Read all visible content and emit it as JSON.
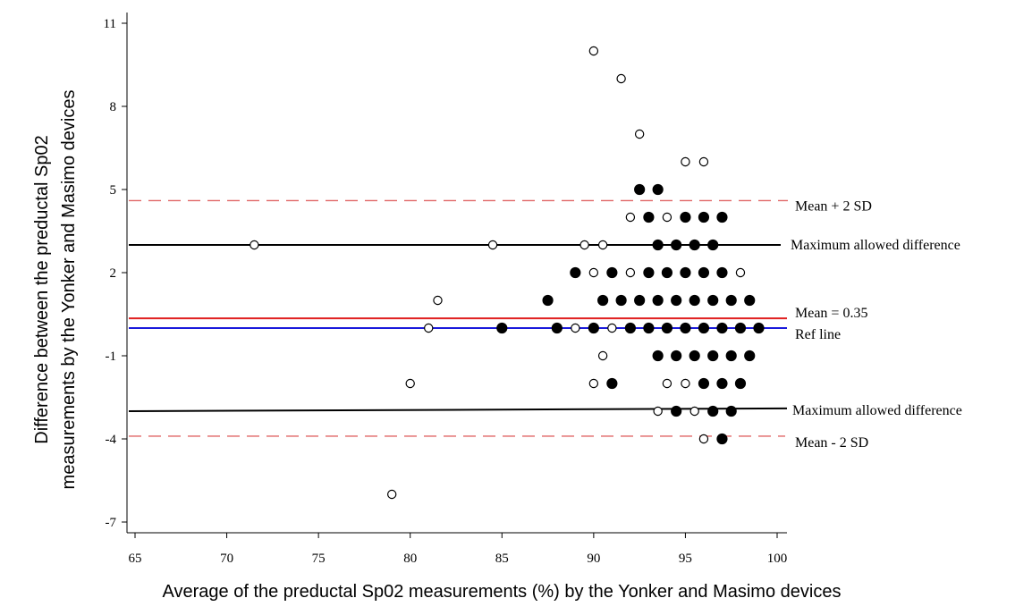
{
  "chart_data": {
    "type": "scatter",
    "xlabel": "Average of the preductal Sp02 measurements (%) by the Yonker and Masimo devices",
    "ylabel_lines": [
      "Difference between the preductal Sp02",
      "measurements by the Yonker and Masimo devices"
    ],
    "xlim": [
      64.5,
      100.5
    ],
    "ylim": [
      -7.3,
      11.5
    ],
    "xticks": [
      65,
      70,
      75,
      80,
      85,
      90,
      95,
      100
    ],
    "yticks": [
      -7,
      -4,
      -1,
      2,
      5,
      8,
      11
    ],
    "grid": false,
    "reference_lines": [
      {
        "label": "Mean + 2 SD",
        "y": 4.6,
        "color": "#e06666",
        "style": "dashed"
      },
      {
        "label": "Maximum allowed difference",
        "y": 3.0,
        "color": "#000000",
        "style": "solid"
      },
      {
        "label": "Mean = 0.35",
        "y": 0.35,
        "color": "#e02020",
        "style": "solid"
      },
      {
        "label": "Ref line",
        "y": 0.0,
        "color": "#1a1adb",
        "style": "solid"
      },
      {
        "label": "Maximum allowed difference",
        "y_start": -3.0,
        "y_end": -2.9,
        "color": "#000000",
        "style": "solid"
      },
      {
        "label": "Mean - 2 SD",
        "y": -3.9,
        "color": "#e06666",
        "style": "dashed"
      }
    ],
    "series": [
      {
        "marker": "open-circle",
        "points": [
          [
            90,
            10
          ],
          [
            91.5,
            9
          ],
          [
            92.5,
            7
          ],
          [
            95,
            6
          ],
          [
            96,
            6
          ],
          [
            92,
            4
          ],
          [
            93,
            4
          ],
          [
            94,
            4
          ],
          [
            71.5,
            3
          ],
          [
            84.5,
            3
          ],
          [
            89.5,
            3
          ],
          [
            90.5,
            3
          ],
          [
            90,
            2
          ],
          [
            92,
            2
          ],
          [
            98,
            2
          ],
          [
            81.5,
            1
          ],
          [
            92.5,
            1
          ],
          [
            81,
            0
          ],
          [
            89,
            0
          ],
          [
            91,
            0
          ],
          [
            90.5,
            -1
          ],
          [
            80,
            -2
          ],
          [
            90,
            -2
          ],
          [
            94,
            -2
          ],
          [
            95,
            -2
          ],
          [
            93.5,
            -3
          ],
          [
            95.5,
            -3
          ],
          [
            96,
            -4
          ],
          [
            79,
            -6
          ]
        ]
      },
      {
        "marker": "filled-circle",
        "points": [
          [
            92.5,
            5
          ],
          [
            93.5,
            5
          ],
          [
            93,
            4
          ],
          [
            95,
            4
          ],
          [
            96,
            4
          ],
          [
            97,
            4
          ],
          [
            93.5,
            3
          ],
          [
            94.5,
            3
          ],
          [
            95.5,
            3
          ],
          [
            96.5,
            3
          ],
          [
            89,
            2
          ],
          [
            91,
            2
          ],
          [
            93,
            2
          ],
          [
            94,
            2
          ],
          [
            95,
            2
          ],
          [
            96,
            2
          ],
          [
            97,
            2
          ],
          [
            87.5,
            1
          ],
          [
            90.5,
            1
          ],
          [
            91.5,
            1
          ],
          [
            92.5,
            1
          ],
          [
            93.5,
            1
          ],
          [
            94.5,
            1
          ],
          [
            95.5,
            1
          ],
          [
            96.5,
            1
          ],
          [
            97.5,
            1
          ],
          [
            98.5,
            1
          ],
          [
            85,
            0
          ],
          [
            88,
            0
          ],
          [
            90,
            0
          ],
          [
            92,
            0
          ],
          [
            93,
            0
          ],
          [
            94,
            0
          ],
          [
            95,
            0
          ],
          [
            96,
            0
          ],
          [
            97,
            0
          ],
          [
            98,
            0
          ],
          [
            99,
            0
          ],
          [
            93.5,
            -1
          ],
          [
            94.5,
            -1
          ],
          [
            95.5,
            -1
          ],
          [
            96.5,
            -1
          ],
          [
            97.5,
            -1
          ],
          [
            98.5,
            -1
          ],
          [
            91,
            -2
          ],
          [
            96,
            -2
          ],
          [
            97,
            -2
          ],
          [
            98,
            -2
          ],
          [
            94.5,
            -3
          ],
          [
            96.5,
            -3
          ],
          [
            97.5,
            -3
          ],
          [
            97,
            -4
          ]
        ]
      }
    ]
  }
}
